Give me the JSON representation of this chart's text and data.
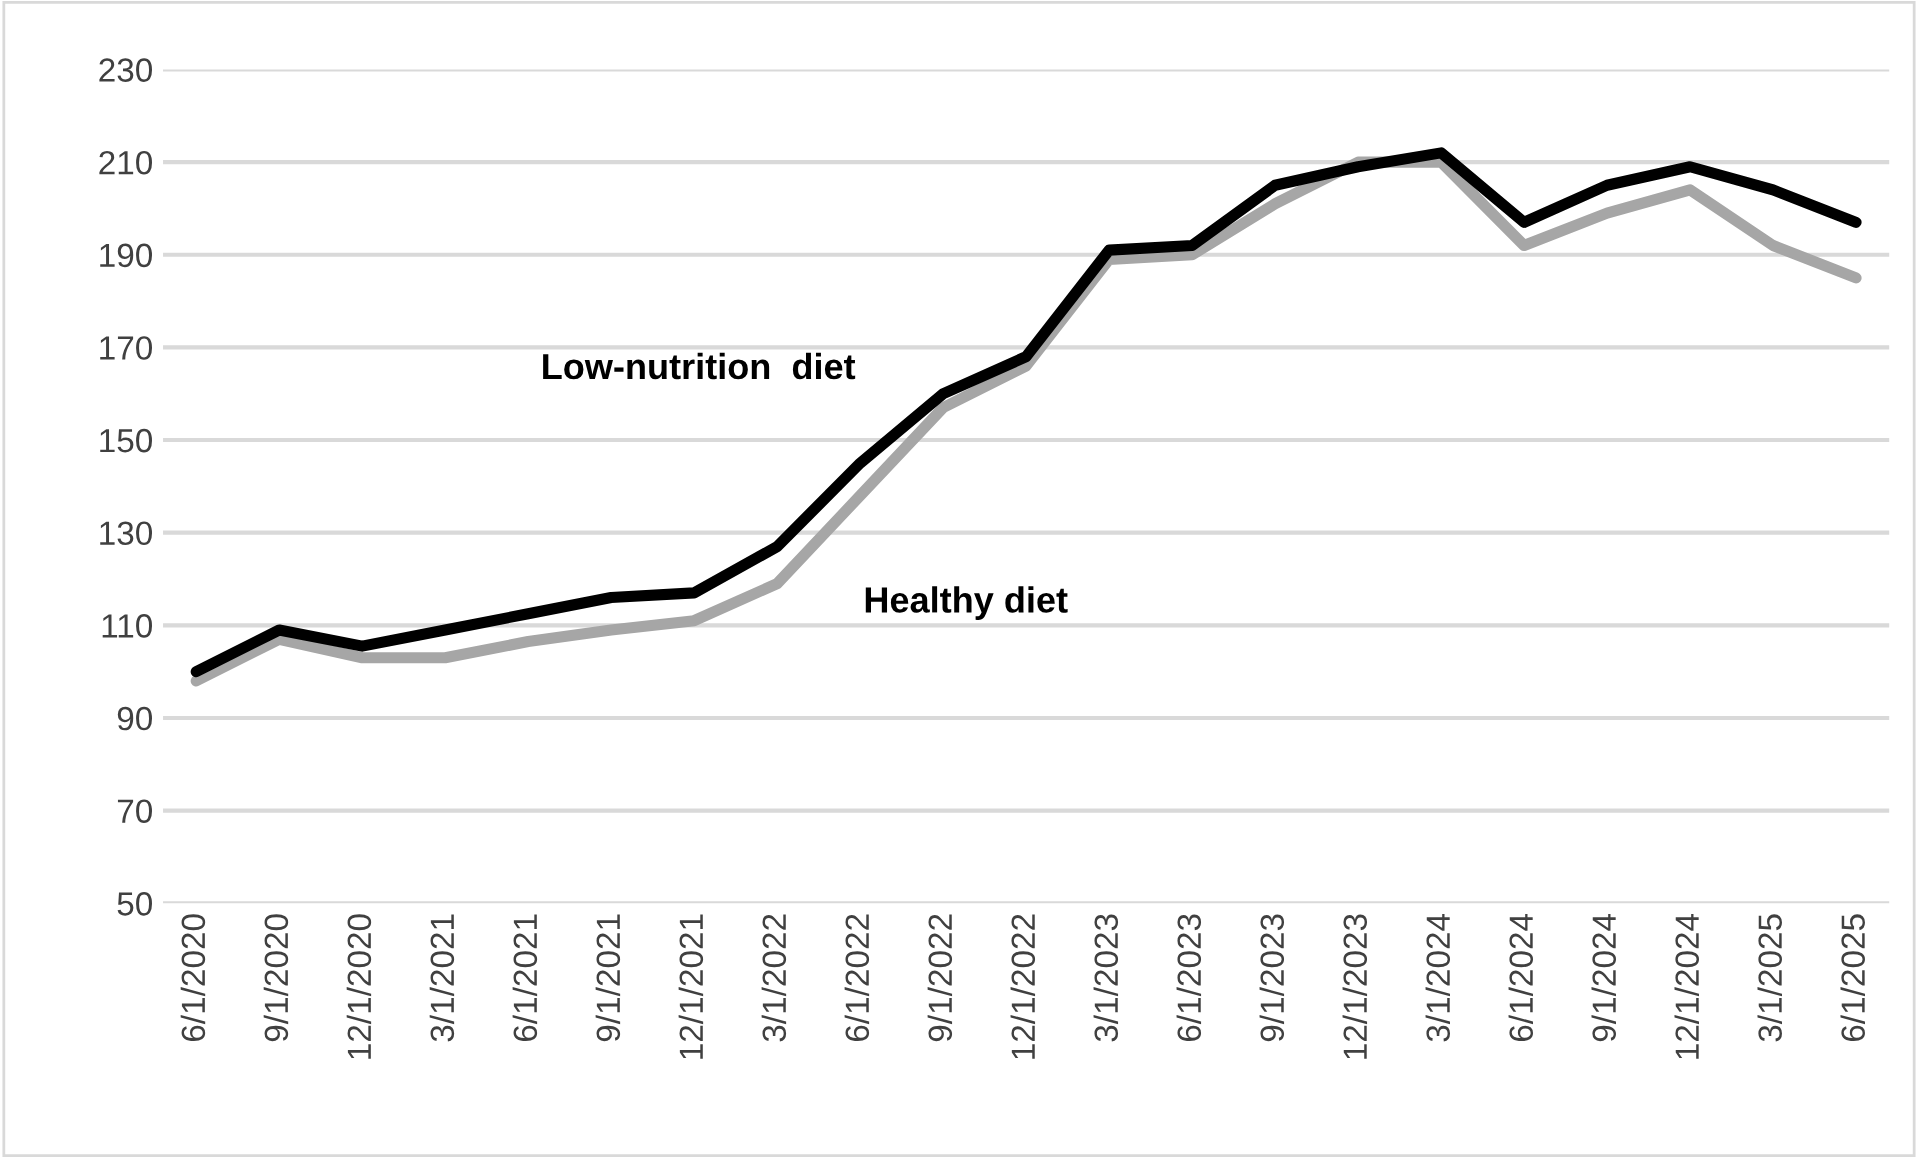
{
  "chart_data": {
    "type": "line",
    "categories": [
      "6/1/2020",
      "9/1/2020",
      "12/1/2020",
      "3/1/2021",
      "6/1/2021",
      "9/1/2021",
      "12/1/2021",
      "3/1/2022",
      "6/1/2022",
      "9/1/2022",
      "12/1/2022",
      "3/1/2023",
      "6/1/2023",
      "9/1/2023",
      "12/1/2023",
      "3/1/2024",
      "6/1/2024",
      "9/1/2024",
      "12/1/2024",
      "3/1/2025",
      "6/1/2025"
    ],
    "series": [
      {
        "name": "Healthy diet",
        "color": "#a6a6a6",
        "values": [
          98,
          107,
          103,
          103,
          106.5,
          109,
          111,
          119,
          138,
          157,
          166,
          189,
          190,
          201,
          210,
          210,
          192,
          199,
          204,
          192,
          185
        ]
      },
      {
        "name": "Low-nutrition  diet",
        "color": "#000000",
        "values": [
          100,
          109,
          105.5,
          109,
          112.5,
          116,
          117,
          127,
          145,
          160,
          168,
          191,
          192,
          205,
          209,
          212,
          197,
          205,
          209,
          204,
          197
        ]
      }
    ],
    "ylim": [
      50,
      230
    ],
    "yticks": [
      50,
      70,
      90,
      110,
      130,
      150,
      170,
      190,
      210,
      230
    ],
    "grid": "y",
    "legend": false,
    "marker": "none",
    "line_style": "solid"
  }
}
